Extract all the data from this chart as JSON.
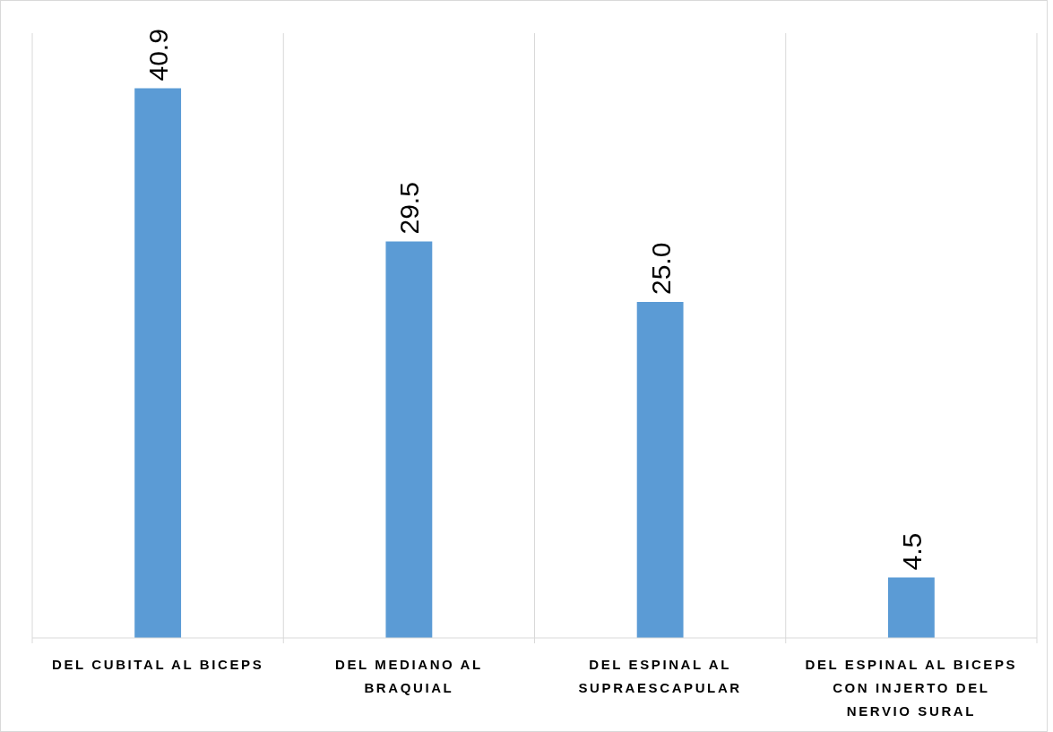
{
  "chart_data": {
    "type": "bar",
    "categories": [
      "DEL CUBITAL AL BICEPS",
      "DEL MEDIANO AL BRAQUIAL",
      "DEL ESPINAL AL SUPRAESCAPULAR",
      "DEL ESPINAL AL BICEPS CON INJERTO DEL NERVIO SURAL"
    ],
    "values": [
      40.9,
      29.5,
      25.0,
      4.5
    ],
    "value_labels": [
      "40.9",
      "29.5",
      "25.0",
      "4.5"
    ],
    "color": "#5b9bd5",
    "ylim": [
      0,
      45
    ],
    "grid": "x",
    "tick_labels": "x"
  }
}
